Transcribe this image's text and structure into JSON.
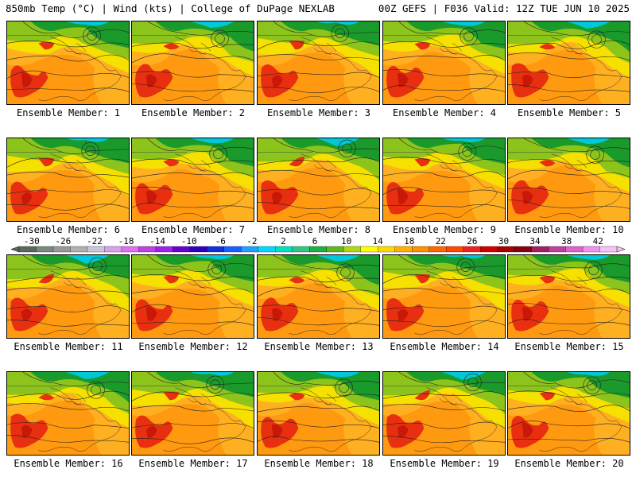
{
  "header": {
    "left": "850mb Temp (°C) | Wind (kts) | College of DuPage NEXLAB",
    "right": "00Z GEFS | F036 Valid: 12Z TUE JUN 10 2025"
  },
  "panels": [
    {
      "label": "Ensemble Member: 1"
    },
    {
      "label": "Ensemble Member: 2"
    },
    {
      "label": "Ensemble Member: 3"
    },
    {
      "label": "Ensemble Member: 4"
    },
    {
      "label": "Ensemble Member: 5"
    },
    {
      "label": "Ensemble Member: 6"
    },
    {
      "label": "Ensemble Member: 7"
    },
    {
      "label": "Ensemble Member: 8"
    },
    {
      "label": "Ensemble Member: 9"
    },
    {
      "label": "Ensemble Member: 10"
    },
    {
      "label": "Ensemble Member: 11"
    },
    {
      "label": "Ensemble Member: 12"
    },
    {
      "label": "Ensemble Member: 13"
    },
    {
      "label": "Ensemble Member: 14"
    },
    {
      "label": "Ensemble Member: 15"
    },
    {
      "label": "Ensemble Member: 16"
    },
    {
      "label": "Ensemble Member: 17"
    },
    {
      "label": "Ensemble Member: 18"
    },
    {
      "label": "Ensemble Member: 19"
    },
    {
      "label": "Ensemble Member: 20"
    }
  ],
  "colorbar": {
    "ticks": [
      "-30",
      "-26",
      "-22",
      "-18",
      "-14",
      "-10",
      "-6",
      "-2",
      "2",
      "6",
      "10",
      "14",
      "18",
      "22",
      "26",
      "30",
      "34",
      "38",
      "42"
    ],
    "colors": [
      "#5a6a5a",
      "#7a8a7a",
      "#999999",
      "#b0b0b0",
      "#c8c8d8",
      "#d8a0e8",
      "#e070f0",
      "#c040e0",
      "#a020f0",
      "#6a00d0",
      "#3000c0",
      "#1030d8",
      "#1860ff",
      "#20a0ff",
      "#00d8ff",
      "#00e0c0",
      "#30c880",
      "#20b040",
      "#60b820",
      "#b0d810",
      "#ffff00",
      "#ffd800",
      "#ffb000",
      "#ff9000",
      "#ff6800",
      "#ff4800",
      "#f02020",
      "#d00000",
      "#a80000",
      "#880010",
      "#a02060",
      "#c040a0",
      "#e060d0",
      "#f090f0",
      "#f8c0f8"
    ]
  },
  "colors": {
    "cold": "#1a9a2a",
    "cool": "#8cc41c",
    "mild": "#f5e000",
    "warm": "#ff9a10",
    "hot": "#e83010",
    "arctic": "#00e0e0"
  }
}
